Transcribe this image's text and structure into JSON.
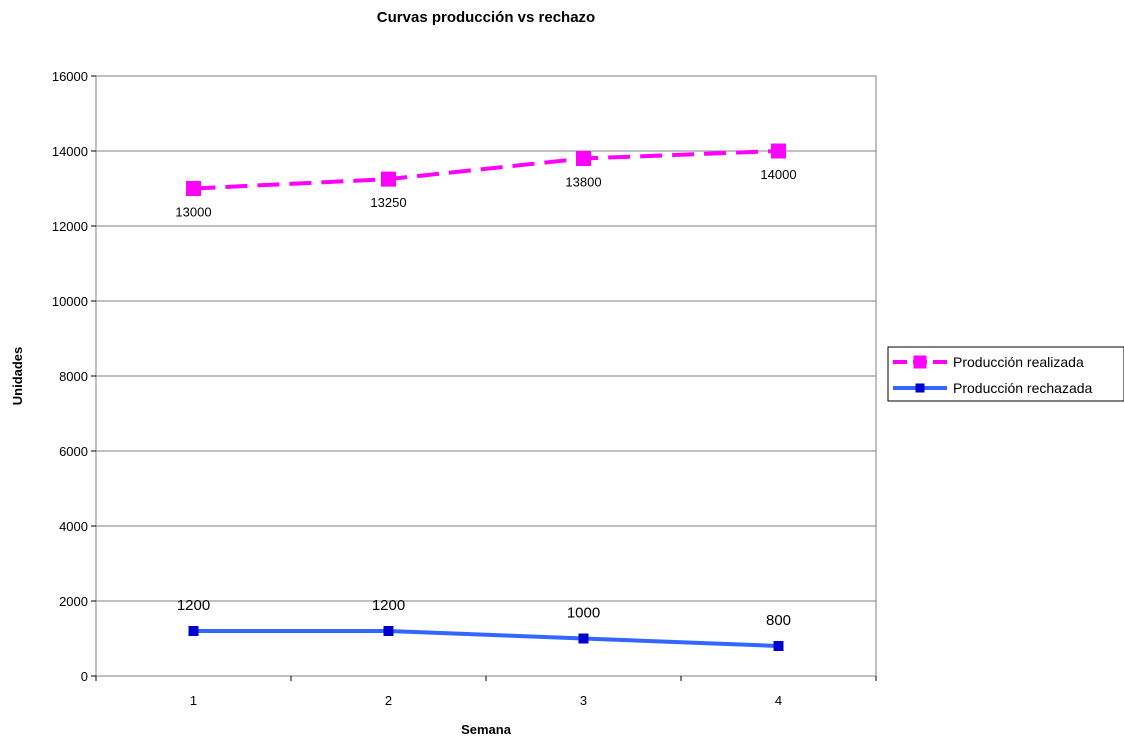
{
  "chart_data": {
    "type": "line",
    "title": "Curvas producción vs rechazo",
    "xlabel": "Semana",
    "ylabel": "Unidades",
    "categories": [
      "1",
      "2",
      "3",
      "4"
    ],
    "ylim": [
      0,
      16000
    ],
    "yticks": [
      "0",
      "2000",
      "4000",
      "6000",
      "8000",
      "10000",
      "12000",
      "14000",
      "16000"
    ],
    "grid": true,
    "legend_position": "right",
    "series": [
      {
        "name": "Producción realizada",
        "values": [
          13000,
          13250,
          13800,
          14000
        ],
        "labels": [
          "13000",
          "13250",
          "13800",
          "14000"
        ],
        "color": "#ff00ff",
        "line_style": "dashed",
        "marker": "square"
      },
      {
        "name": "Producción rechazada",
        "values": [
          1200,
          1200,
          1000,
          800
        ],
        "labels": [
          "1200",
          "1200",
          "1000",
          "800"
        ],
        "color": "#3366ff",
        "marker_color": "#0000cc",
        "line_style": "solid",
        "marker": "square"
      }
    ]
  }
}
